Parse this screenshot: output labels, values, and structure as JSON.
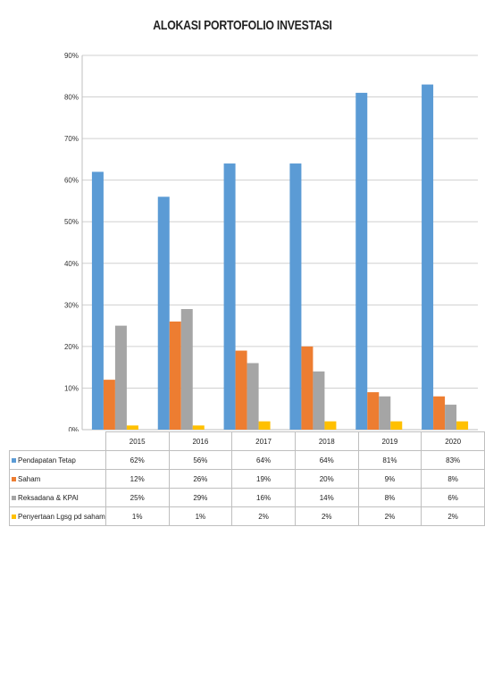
{
  "chart_data": {
    "type": "bar",
    "title": "ALOKASI PORTOFOLIO INVESTASI",
    "categories": [
      "2015",
      "2016",
      "2017",
      "2018",
      "2019",
      "2020"
    ],
    "series": [
      {
        "name": "Pendapatan Tetap",
        "color": "#5b9bd5",
        "values": [
          62,
          56,
          64,
          64,
          81,
          83
        ],
        "labels": [
          "62%",
          "56%",
          "64%",
          "64%",
          "81%",
          "83%"
        ]
      },
      {
        "name": "Saham",
        "color": "#ed7d31",
        "values": [
          12,
          26,
          19,
          20,
          9,
          8
        ],
        "labels": [
          "12%",
          "26%",
          "19%",
          "20%",
          "9%",
          "8%"
        ]
      },
      {
        "name": "Reksadana & KPAI",
        "color": "#a5a5a5",
        "values": [
          25,
          29,
          16,
          14,
          8,
          6
        ],
        "labels": [
          "25%",
          "29%",
          "16%",
          "14%",
          "8%",
          "6%"
        ]
      },
      {
        "name": "Penyertaan Lgsg pd saham",
        "color": "#ffc000",
        "values": [
          1,
          1,
          2,
          2,
          2,
          2
        ],
        "labels": [
          "1%",
          "1%",
          "2%",
          "2%",
          "2%",
          "2%"
        ]
      }
    ],
    "ylim": [
      0,
      90
    ],
    "yticks": [
      "0%",
      "10%",
      "20%",
      "30%",
      "40%",
      "50%",
      "60%",
      "70%",
      "80%",
      "90%"
    ],
    "grid": true,
    "legend": "data-table"
  }
}
